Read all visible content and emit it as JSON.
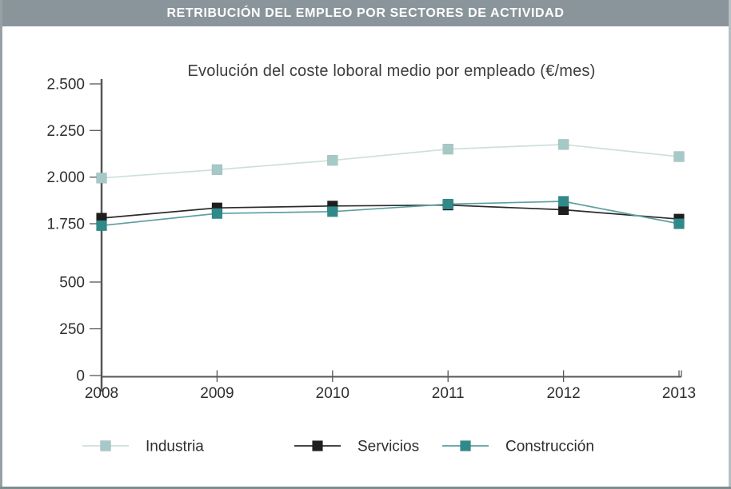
{
  "header": {
    "title": "RETRIBUCIÓN DEL EMPLEO POR SECTORES DE ACTIVIDAD",
    "bg_color": "#8a959b",
    "text_color": "#ffffff"
  },
  "chart_data": {
    "type": "line",
    "title": "Evolución del coste loboral medio por empleado (€/mes)",
    "categories": [
      "2008",
      "2009",
      "2010",
      "2011",
      "2012",
      "2013"
    ],
    "series": [
      {
        "name": "Industria",
        "values": [
          1995,
          2040,
          2090,
          2150,
          2175,
          2110
        ],
        "marker_color": "#a6c9c7",
        "line_color": "#cfdfde"
      },
      {
        "name": "Servicios",
        "values": [
          1780,
          1835,
          1845,
          1850,
          1825,
          1775
        ],
        "marker_color": "#1e1e1e",
        "line_color": "#2b2b2b"
      },
      {
        "name": "Construcción",
        "values": [
          1710,
          1805,
          1815,
          1855,
          1870,
          1750
        ],
        "marker_color": "#318a8a",
        "line_color": "#5d9fa0"
      }
    ],
    "y_axis": {
      "tick_labels": [
        "2.500",
        "2.250",
        "2.000",
        "1.750",
        "500",
        "250",
        "0"
      ],
      "tick_values": [
        2500,
        2250,
        2000,
        1750,
        500,
        250,
        0
      ],
      "note": "broken scale: labels jump from 1.750 to 500",
      "unit": "€/mes"
    },
    "xlabel": "",
    "ylabel": "",
    "grid": false,
    "legend_position": "bottom",
    "marker_shape": "square",
    "text_color": "#2e2e2e",
    "axis_color": "#575757"
  }
}
